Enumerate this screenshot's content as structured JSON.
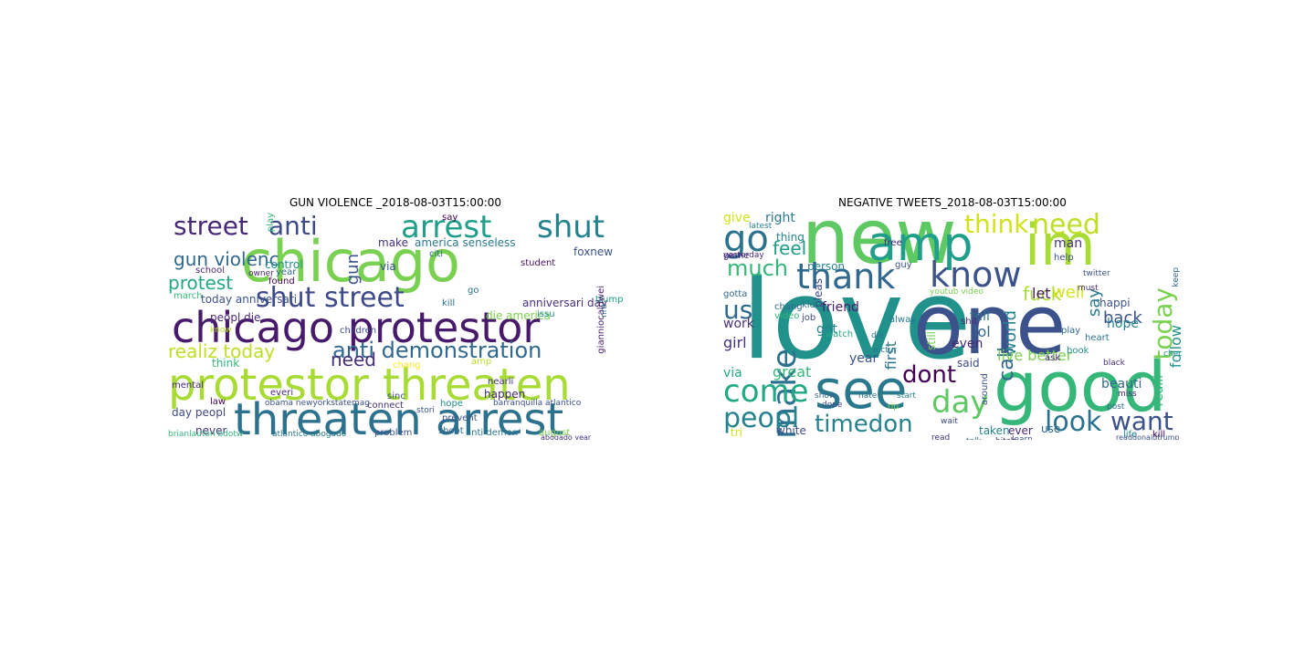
{
  "figure": {
    "panels": [
      {
        "title": "GUN VIOLENCE _2018-08-03T15:00:00",
        "words": [
          {
            "text": "street",
            "color": "#482878"
          },
          {
            "text": "anti",
            "color": "#3e4a89"
          },
          {
            "text": "arrest",
            "color": "#1f9e89"
          },
          {
            "text": "shut",
            "color": "#26828e"
          },
          {
            "text": "chicago",
            "color": "#7ad151"
          },
          {
            "text": "gun",
            "color": "#3b528b"
          },
          {
            "text": "gun violenc",
            "color": "#31688e"
          },
          {
            "text": "protest",
            "color": "#22a884"
          },
          {
            "text": "shut street",
            "color": "#3e4a89"
          },
          {
            "text": "chicago protestor",
            "color": "#481a6c"
          },
          {
            "text": "anti demonstration",
            "color": "#31688e"
          },
          {
            "text": "realiz today",
            "color": "#bddf26"
          },
          {
            "text": "need",
            "color": "#472d7b"
          },
          {
            "text": "protestor threaten",
            "color": "#a8db34"
          },
          {
            "text": "threaten arrest",
            "color": "#2c728e"
          },
          {
            "text": "today anniversari",
            "color": "#3b528b"
          },
          {
            "text": "peopl die",
            "color": "#482878"
          },
          {
            "text": "anniversari day",
            "color": "#46327e"
          },
          {
            "text": "die america",
            "color": "#7ad151"
          },
          {
            "text": "america senseless",
            "color": "#2a788e"
          },
          {
            "text": "day peopl",
            "color": "#3e4a89"
          },
          {
            "text": "never",
            "color": "#443983"
          },
          {
            "text": "control",
            "color": "#21918c"
          },
          {
            "text": "make",
            "color": "#46327e"
          },
          {
            "text": "via",
            "color": "#3b528b"
          },
          {
            "text": "school",
            "color": "#482878"
          },
          {
            "text": "march",
            "color": "#35b779"
          },
          {
            "text": "found",
            "color": "#440154"
          },
          {
            "text": "kill",
            "color": "#2c728e"
          },
          {
            "text": "citi",
            "color": "#31688e"
          },
          {
            "text": "student",
            "color": "#471365"
          },
          {
            "text": "foxnew",
            "color": "#3b528b"
          },
          {
            "text": "trump",
            "color": "#1f9e89"
          },
          {
            "text": "think",
            "color": "#35b779"
          },
          {
            "text": "happen",
            "color": "#482878"
          },
          {
            "text": "prevent",
            "color": "#3b528b"
          },
          {
            "text": "hope",
            "color": "#21918c"
          },
          {
            "text": "amp",
            "color": "#b5de2b"
          },
          {
            "text": "chang",
            "color": "#fde725"
          },
          {
            "text": "everi",
            "color": "#482878"
          },
          {
            "text": "law",
            "color": "#440154"
          },
          {
            "text": "sinc",
            "color": "#3b528b"
          },
          {
            "text": "connect",
            "color": "#46327e"
          },
          {
            "text": "shoot",
            "color": "#31688e"
          },
          {
            "text": "anti demon",
            "color": "#2a788e"
          },
          {
            "text": "problem",
            "color": "#3b528b"
          },
          {
            "text": "august",
            "color": "#7ad151"
          },
          {
            "text": "issu",
            "color": "#21918c"
          },
          {
            "text": "children",
            "color": "#3e4a89"
          },
          {
            "text": "mental",
            "color": "#482878"
          },
          {
            "text": "play",
            "color": "#35b779"
          },
          {
            "text": "year",
            "color": "#31688e"
          },
          {
            "text": "go",
            "color": "#2c728e"
          },
          {
            "text": "stori",
            "color": "#3b528b"
          },
          {
            "text": "say",
            "color": "#440154"
          },
          {
            "text": "know",
            "color": "#b5de2b"
          },
          {
            "text": "nearli",
            "color": "#46327e"
          },
          {
            "text": "gianniocaldwei",
            "color": "#481a6c"
          },
          {
            "text": "barranquilla atlantico",
            "color": "#3b528b"
          },
          {
            "text": "atlantico abogado",
            "color": "#2a788e"
          },
          {
            "text": "obama newyorkstatemag",
            "color": "#3b528b"
          },
          {
            "text": "brianlauton bdotw",
            "color": "#35b779"
          },
          {
            "text": "owner",
            "color": "#482878"
          },
          {
            "text": "nra",
            "color": "#2c728e"
          },
          {
            "text": "abogado year",
            "color": "#46327e"
          }
        ]
      },
      {
        "title": "NEGATIVE TWEETS_2018-08-03T15:00:00",
        "words": [
          {
            "text": "new",
            "color": "#5ec962"
          },
          {
            "text": "love",
            "color": "#21918c"
          },
          {
            "text": "one",
            "color": "#3b528b"
          },
          {
            "text": "good",
            "color": "#35b779"
          },
          {
            "text": "see",
            "color": "#2a788e"
          },
          {
            "text": "amp",
            "color": "#1f9e89"
          },
          {
            "text": "im",
            "color": "#a8db34"
          },
          {
            "text": "know",
            "color": "#3b528b"
          },
          {
            "text": "thank",
            "color": "#31688e"
          },
          {
            "text": "think",
            "color": "#d2e21b"
          },
          {
            "text": "need",
            "color": "#bddf26"
          },
          {
            "text": "go",
            "color": "#2c728e"
          },
          {
            "text": "much",
            "color": "#35b779"
          },
          {
            "text": "us",
            "color": "#31688e"
          },
          {
            "text": "make",
            "color": "#2c728e"
          },
          {
            "text": "come",
            "color": "#22a884"
          },
          {
            "text": "peopl",
            "color": "#26828e"
          },
          {
            "text": "day",
            "color": "#5ec962"
          },
          {
            "text": "timedon",
            "color": "#26828e"
          },
          {
            "text": "look",
            "color": "#2c728e"
          },
          {
            "text": "want",
            "color": "#3b528b"
          },
          {
            "text": "dont",
            "color": "#440154"
          },
          {
            "text": "call",
            "color": "#31688e"
          },
          {
            "text": "today",
            "color": "#7ad151"
          },
          {
            "text": "fuck",
            "color": "#a8db34"
          },
          {
            "text": "say",
            "color": "#2a788e"
          },
          {
            "text": "follow",
            "color": "#21918c"
          },
          {
            "text": "let",
            "color": "#481a6c"
          },
          {
            "text": "well",
            "color": "#d2e21b"
          },
          {
            "text": "back",
            "color": "#3b528b"
          },
          {
            "text": "feel",
            "color": "#1f9e89"
          },
          {
            "text": "give",
            "color": "#d2e21b"
          },
          {
            "text": "right",
            "color": "#2a788e"
          },
          {
            "text": "work",
            "color": "#46327e"
          },
          {
            "text": "girl",
            "color": "#46327e"
          },
          {
            "text": "got",
            "color": "#26828e"
          },
          {
            "text": "via",
            "color": "#22a884"
          },
          {
            "text": "great",
            "color": "#35b779"
          },
          {
            "text": "white",
            "color": "#3e4a89"
          },
          {
            "text": "tri",
            "color": "#d2e21b"
          },
          {
            "text": "lol",
            "color": "#31688e"
          },
          {
            "text": "tell",
            "color": "#2c728e"
          },
          {
            "text": "world",
            "color": "#26828e"
          },
          {
            "text": "live better",
            "color": "#7ad151"
          },
          {
            "text": "beauti",
            "color": "#31688e"
          },
          {
            "text": "realli",
            "color": "#35b779"
          },
          {
            "text": "hope",
            "color": "#26828e"
          },
          {
            "text": "even",
            "color": "#482878"
          },
          {
            "text": "said",
            "color": "#3e4a89"
          },
          {
            "text": "taken",
            "color": "#26828e"
          },
          {
            "text": "ever",
            "color": "#482878"
          },
          {
            "text": "use",
            "color": "#31688e"
          },
          {
            "text": "friend",
            "color": "#481a6c"
          },
          {
            "text": "first",
            "color": "#2c728e"
          },
          {
            "text": "year",
            "color": "#3b528b"
          },
          {
            "text": "thing",
            "color": "#26828e"
          },
          {
            "text": "man",
            "color": "#46327e"
          },
          {
            "text": "help",
            "color": "#3b528b"
          },
          {
            "text": "still",
            "color": "#7ad151"
          },
          {
            "text": "kid",
            "color": "#2a788e"
          },
          {
            "text": "chang",
            "color": "#31688e"
          },
          {
            "text": "pleas",
            "color": "#3e4a89"
          },
          {
            "text": "person",
            "color": "#26828e"
          },
          {
            "text": "happi",
            "color": "#3b528b"
          },
          {
            "text": "play",
            "color": "#31688e"
          },
          {
            "text": "book",
            "color": "#21918c"
          },
          {
            "text": "job",
            "color": "#3e4a89"
          },
          {
            "text": "game",
            "color": "#46327e"
          },
          {
            "text": "free",
            "color": "#482878"
          },
          {
            "text": "gotta",
            "color": "#31688e"
          },
          {
            "text": "video",
            "color": "#35b779"
          },
          {
            "text": "around",
            "color": "#3b528b"
          },
          {
            "text": "alway",
            "color": "#2a788e"
          },
          {
            "text": "shit",
            "color": "#482878"
          },
          {
            "text": "life",
            "color": "#26828e"
          },
          {
            "text": "kill",
            "color": "#440154"
          },
          {
            "text": "check",
            "color": "#21918c"
          },
          {
            "text": "keep",
            "color": "#31688e"
          },
          {
            "text": "ask",
            "color": "#482878"
          },
          {
            "text": "heart",
            "color": "#2c728e"
          },
          {
            "text": "guy",
            "color": "#3b528b"
          },
          {
            "text": "watch",
            "color": "#22a884"
          },
          {
            "text": "die",
            "color": "#2a788e"
          },
          {
            "text": "black",
            "color": "#46327e"
          },
          {
            "text": "miss",
            "color": "#482878"
          },
          {
            "text": "post",
            "color": "#31688e"
          },
          {
            "text": "twitter",
            "color": "#3b528b"
          },
          {
            "text": "must",
            "color": "#46327e"
          },
          {
            "text": "yesterday",
            "color": "#482878"
          },
          {
            "text": "latest",
            "color": "#26828e"
          },
          {
            "text": "youtub video",
            "color": "#7ad151"
          },
          {
            "text": "show",
            "color": "#31688e"
          },
          {
            "text": "done",
            "color": "#3e4a89"
          },
          {
            "text": "pictur",
            "color": "#2a788e"
          },
          {
            "text": "read",
            "color": "#46327e"
          },
          {
            "text": "learn",
            "color": "#3b528b"
          },
          {
            "text": "talk",
            "color": "#31688e"
          },
          {
            "text": "bitch",
            "color": "#482878"
          },
          {
            "text": "hate",
            "color": "#2c728e"
          },
          {
            "text": "start",
            "color": "#26828e"
          },
          {
            "text": "wait",
            "color": "#3e4a89"
          },
          {
            "text": "rip",
            "color": "#7ad151"
          },
          {
            "text": "readdonaldtrump",
            "color": "#3b528b"
          }
        ]
      }
    ]
  }
}
